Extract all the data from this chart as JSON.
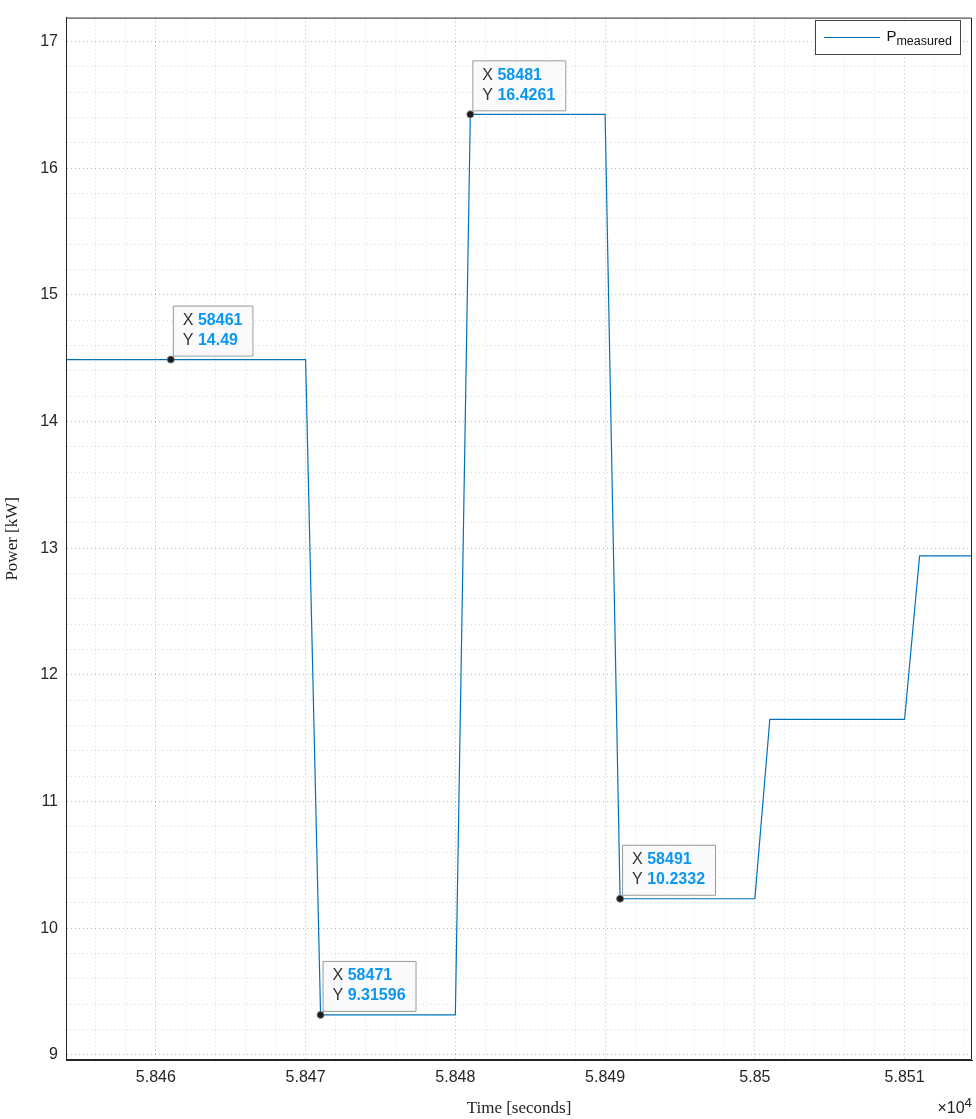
{
  "chart_data": {
    "type": "line",
    "xlabel": "Time [seconds]",
    "ylabel": "Power [kW]",
    "x": [
      5.8454,
      5.847,
      5.8471,
      5.848,
      5.8481,
      5.849,
      5.8491,
      5.85,
      5.8501,
      5.851,
      5.8511,
      5.85145
    ],
    "series": [
      {
        "name": "P$_{measured}$",
        "color": "#0072bd",
        "values": [
          14.49,
          14.49,
          9.31596,
          9.31596,
          16.4261,
          16.4261,
          10.2332,
          10.2332,
          11.65,
          11.65,
          12.94,
          12.94
        ]
      }
    ],
    "xlim": [
      5.8454,
      5.85145
    ],
    "xticks": [
      {
        "value": 5.8454,
        "label": null
      },
      {
        "value": 5.8456,
        "label": null
      },
      {
        "value": 5.8458,
        "label": null
      },
      5.846,
      {
        "value": 5.8462,
        "label": null
      },
      {
        "value": 5.8464,
        "label": null
      },
      {
        "value": 5.8466,
        "label": null
      },
      {
        "value": 5.8468,
        "label": null
      },
      5.847,
      {
        "value": 5.8472,
        "label": null
      },
      {
        "value": 5.8474,
        "label": null
      },
      {
        "value": 5.8476,
        "label": null
      },
      {
        "value": 5.8478,
        "label": null
      },
      5.848,
      {
        "value": 5.8482,
        "label": null
      },
      {
        "value": 5.8484,
        "label": null
      },
      {
        "value": 5.8486,
        "label": null
      },
      {
        "value": 5.8488,
        "label": null
      },
      5.849,
      {
        "value": 5.8492,
        "label": null
      },
      {
        "value": 5.8494,
        "label": null
      },
      {
        "value": 5.8496,
        "label": null
      },
      {
        "value": 5.8498,
        "label": null
      },
      5.85,
      {
        "value": 5.8502,
        "label": null
      },
      {
        "value": 5.8504,
        "label": null
      },
      {
        "value": 5.8506,
        "label": null
      },
      {
        "value": 5.8508,
        "label": null
      },
      5.851,
      {
        "value": 5.8512,
        "label": null
      },
      {
        "value": 5.8514,
        "label": null
      }
    ],
    "ylim": [
      8.96,
      17.19
    ],
    "yticks": [
      9,
      {
        "value": 9.2,
        "label": null
      },
      {
        "value": 9.4,
        "label": null
      },
      {
        "value": 9.6,
        "label": null
      },
      {
        "value": 9.8,
        "label": null
      },
      10,
      {
        "value": 10.2,
        "label": null
      },
      {
        "value": 10.4,
        "label": null
      },
      {
        "value": 10.6,
        "label": null
      },
      {
        "value": 10.8,
        "label": null
      },
      11,
      {
        "value": 11.2,
        "label": null
      },
      {
        "value": 11.4,
        "label": null
      },
      {
        "value": 11.6,
        "label": null
      },
      {
        "value": 11.8,
        "label": null
      },
      12,
      {
        "value": 12.2,
        "label": null
      },
      {
        "value": 12.4,
        "label": null
      },
      {
        "value": 12.6,
        "label": null
      },
      {
        "value": 12.8,
        "label": null
      },
      13,
      {
        "value": 13.2,
        "label": null
      },
      {
        "value": 13.4,
        "label": null
      },
      {
        "value": 13.6,
        "label": null
      },
      {
        "value": 13.8,
        "label": null
      },
      14,
      {
        "value": 14.2,
        "label": null
      },
      {
        "value": 14.4,
        "label": null
      },
      {
        "value": 14.6,
        "label": null
      },
      {
        "value": 14.8,
        "label": null
      },
      15,
      {
        "value": 15.2,
        "label": null
      },
      {
        "value": 15.4,
        "label": null
      },
      {
        "value": 15.6,
        "label": null
      },
      {
        "value": 15.8,
        "label": null
      },
      16,
      {
        "value": 16.2,
        "label": null
      },
      {
        "value": 16.4,
        "label": null
      },
      {
        "value": 16.6,
        "label": null
      },
      {
        "value": 16.8,
        "label": null
      },
      17
    ],
    "grid": true,
    "legend": "top right",
    "marker": "none",
    "line_style": "solid",
    "annotations": [
      {
        "text": "X 58461\nY 14.49",
        "x": 5.8461,
        "y": 14.49
      },
      {
        "text": "X 58471\nY 9.31596",
        "x": 5.8471,
        "y": 9.31596
      },
      {
        "text": "X 58481\nY 16.4261",
        "x": 5.8481,
        "y": 16.4261
      },
      {
        "text": "X 58491\nY 10.2332",
        "x": 5.8491,
        "y": 10.2332
      },
      "×10$^{4}$"
    ]
  }
}
